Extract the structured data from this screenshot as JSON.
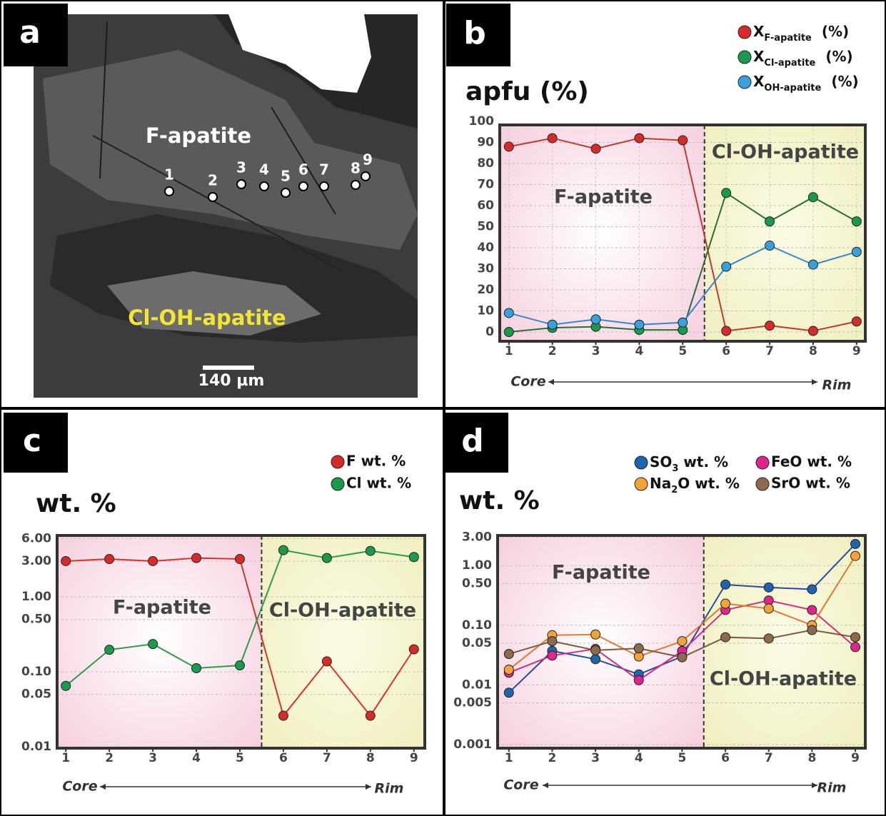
{
  "image_panel": {
    "panel": "a",
    "labels": {
      "f_apatite": "F-apatite",
      "cl_oh_apatite": "Cl-OH-apatite",
      "scale": "140 µm"
    },
    "points": [
      "1",
      "2",
      "3",
      "4",
      "5",
      "6",
      "7",
      "8",
      "9"
    ]
  },
  "chart_data": [
    {
      "type": "line",
      "panel": "b",
      "title": "apfu (%)",
      "x": [
        1,
        2,
        3,
        4,
        5,
        6,
        7,
        8,
        9
      ],
      "xlim": [
        0.79,
        9.2
      ],
      "xticks": [
        1,
        2,
        3,
        4,
        5,
        6,
        7,
        8,
        9
      ],
      "ylim": [
        -4.4,
        98.3
      ],
      "yticks": [
        0,
        10,
        20,
        30,
        40,
        50,
        60,
        70,
        80,
        90,
        100
      ],
      "grid": true,
      "log_scale": false,
      "divider_x": 5.5,
      "regions": [
        "F-apatite",
        "Cl-OH-apatite"
      ],
      "x_direction": {
        "start": "Core",
        "end": "Rim"
      },
      "series": [
        {
          "name": [
            "X",
            "F-apatite",
            "(%)"
          ],
          "color": "#d62b2b",
          "line_color": "#c0392b",
          "values": [
            88,
            92,
            87,
            92,
            91,
            0.5,
            3,
            0.5,
            5
          ]
        },
        {
          "name": [
            "X",
            "Cl-apatite",
            "(%)"
          ],
          "color": "#1a9a4a",
          "line_color": "#2b6e35",
          "values": [
            0,
            2,
            2.5,
            1,
            1,
            66,
            52.5,
            64,
            52.5
          ]
        },
        {
          "name": [
            "X",
            "OH-apatite",
            "(%)"
          ],
          "color": "#3aa0dd",
          "line_color": "#3a86c8",
          "values": [
            9,
            3.5,
            6,
            3.5,
            4.5,
            31,
            41,
            32,
            38
          ]
        }
      ]
    },
    {
      "type": "line",
      "panel": "c",
      "title": "wt. %",
      "x": [
        1,
        2,
        3,
        4,
        5,
        6,
        7,
        8,
        9
      ],
      "xlim": [
        0.8,
        9.25
      ],
      "xticks": [
        1,
        2,
        3,
        4,
        5,
        6,
        7,
        8,
        9
      ],
      "ylim": [
        0.0096,
        6.6
      ],
      "yticks": [
        {
          "value": 6,
          "label": "6.00"
        },
        {
          "value": 3,
          "label": "3.00"
        },
        {
          "value": 1,
          "label": "1.00"
        },
        {
          "value": 0.5,
          "label": "0.50"
        },
        {
          "value": 0.1,
          "label": "0.10"
        },
        {
          "value": 0.05,
          "label": "0.05"
        },
        {
          "value": 0.01,
          "label": "0.01"
        }
      ],
      "grid": true,
      "log_scale": true,
      "divider_x": 5.5,
      "regions": [
        "F-apatite",
        "Cl-OH-apatite"
      ],
      "x_direction": {
        "start": "Core",
        "end": "Rim"
      },
      "series": [
        {
          "name": "F wt. %",
          "color": "#d62b2b",
          "line_color": "#d0352b",
          "values": [
            3.0,
            3.2,
            3.0,
            3.3,
            3.2,
            0.026,
            0.138,
            0.026,
            0.2
          ]
        },
        {
          "name": "Cl wt. %",
          "color": "#1a9a4a",
          "line_color": "#2e9a4a",
          "values": [
            0.065,
            0.197,
            0.235,
            0.112,
            0.122,
            4.2,
            3.3,
            4.1,
            3.4
          ]
        }
      ]
    },
    {
      "type": "line",
      "panel": "d",
      "title": "wt. %",
      "x": [
        1,
        2,
        3,
        4,
        5,
        6,
        7,
        8,
        9
      ],
      "xlim": [
        0.74,
        9.23
      ],
      "xticks": [
        1,
        2,
        3,
        4,
        5,
        6,
        7,
        8,
        9
      ],
      "ylim": [
        0.00087,
        3.2
      ],
      "yticks": [
        {
          "value": 3,
          "label": "3.00"
        },
        {
          "value": 1,
          "label": "1.00"
        },
        {
          "value": 0.5,
          "label": "0.50"
        },
        {
          "value": 0.1,
          "label": "0.10"
        },
        {
          "value": 0.05,
          "label": "0.05"
        },
        0.01,
        0.005,
        0.001
      ],
      "grid": true,
      "log_scale": true,
      "divider_x": 5.5,
      "regions": [
        "F-apatite",
        "Cl-OH-apatite"
      ],
      "x_direction": {
        "start": "Core",
        "end": "Rim"
      },
      "series": [
        {
          "name": [
            "SO",
            "3",
            " wt. %"
          ],
          "color": "#1f64b0",
          "line_color": "#2b4a9a",
          "values": [
            0.0074,
            0.037,
            0.027,
            0.015,
            0.03,
            0.48,
            0.43,
            0.4,
            2.3
          ]
        },
        {
          "name": "FeO wt. %",
          "color": "#e0258c",
          "line_color": "#d0307f",
          "values": [
            0.016,
            0.031,
            0.04,
            0.012,
            0.037,
            0.18,
            0.26,
            0.18,
            0.043
          ]
        },
        {
          "name": [
            "Na",
            "2",
            "O wt. %"
          ],
          "color": "#f2a43a",
          "line_color": "#e07a30",
          "values": [
            0.018,
            0.068,
            0.07,
            0.03,
            0.054,
            0.23,
            0.19,
            0.1,
            1.45
          ]
        },
        {
          "name": "SrO wt. %",
          "color": "#8b6a4e",
          "line_color": "#7a5a40",
          "values": [
            0.033,
            0.054,
            0.038,
            0.041,
            0.029,
            0.063,
            0.06,
            0.083,
            0.063
          ]
        }
      ]
    }
  ]
}
